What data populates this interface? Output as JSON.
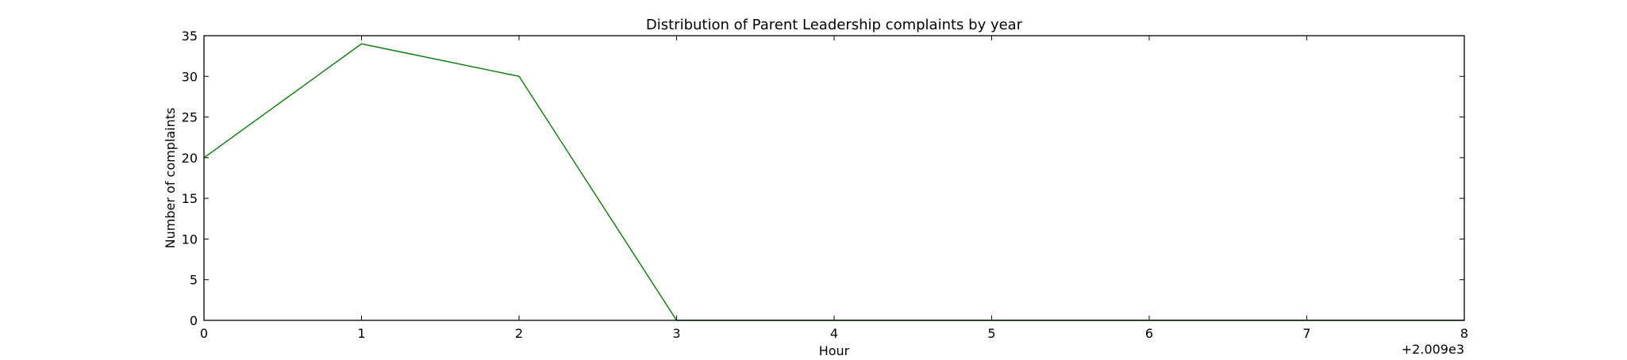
{
  "chart_data": {
    "type": "line",
    "title": "Distribution of  Parent Leadership complaints by year",
    "xlabel": "Hour",
    "ylabel": "Number of complaints",
    "x_offset_label": "+2.009e3",
    "x": [
      2009,
      2010,
      2011,
      2012,
      2013,
      2014,
      2015,
      2016,
      2017
    ],
    "series": [
      {
        "values": [
          20,
          34,
          30,
          0,
          0,
          0,
          0,
          0,
          0
        ],
        "color": "#008000"
      }
    ],
    "xlim": [
      2009,
      2017
    ],
    "ylim": [
      0,
      35
    ],
    "x_ticks": [
      {
        "value": 2009,
        "label": "0"
      },
      {
        "value": 2010,
        "label": "1"
      },
      {
        "value": 2011,
        "label": "2"
      },
      {
        "value": 2012,
        "label": "3"
      },
      {
        "value": 2013,
        "label": "4"
      },
      {
        "value": 2014,
        "label": "5"
      },
      {
        "value": 2015,
        "label": "6"
      },
      {
        "value": 2016,
        "label": "7"
      },
      {
        "value": 2017,
        "label": "8"
      }
    ],
    "y_ticks": [
      {
        "value": 0,
        "label": "0"
      },
      {
        "value": 5,
        "label": "5"
      },
      {
        "value": 10,
        "label": "10"
      },
      {
        "value": 15,
        "label": "15"
      },
      {
        "value": 20,
        "label": "20"
      },
      {
        "value": 25,
        "label": "25"
      },
      {
        "value": 30,
        "label": "30"
      },
      {
        "value": 35,
        "label": "35"
      }
    ],
    "grid": false,
    "legend": "none"
  }
}
